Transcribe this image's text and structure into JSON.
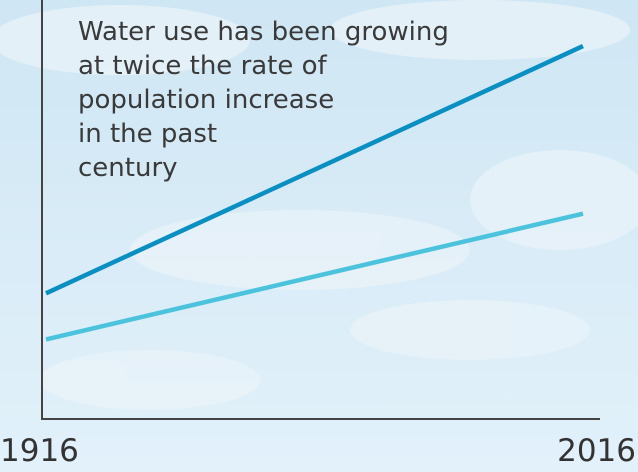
{
  "chart_data": {
    "type": "line",
    "annotation": [
      "Water use has been growing",
      "at twice the rate of",
      "population increase",
      "in the past",
      "century"
    ],
    "x": [
      1916,
      2016
    ],
    "series": [
      {
        "color": "#0a8fc2",
        "values": [
          30,
          89
        ]
      },
      {
        "color": "#4cc3dc",
        "values": [
          19,
          49
        ]
      }
    ],
    "xlim": [
      1916,
      2016
    ],
    "xticks": [
      1916,
      2016
    ],
    "ylim": [
      0,
      100
    ],
    "grid": false
  }
}
